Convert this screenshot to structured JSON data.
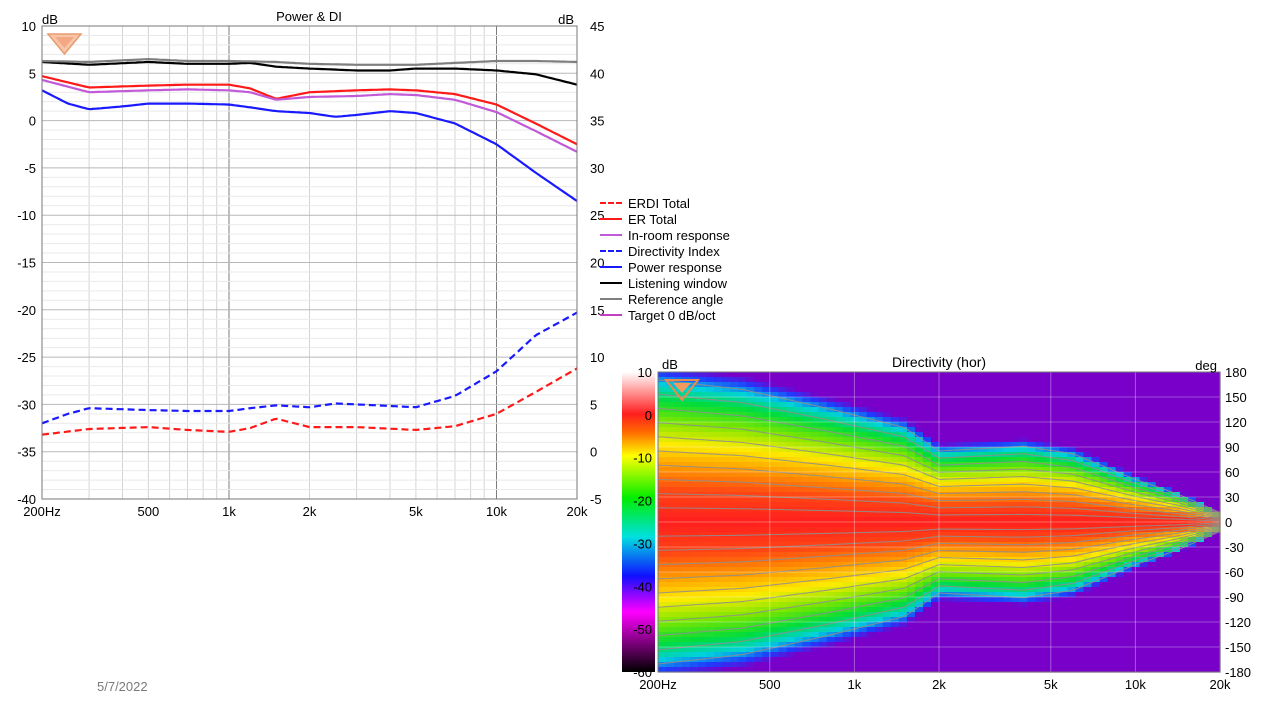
{
  "footer": {
    "date": "5/7/2022"
  },
  "colors": {
    "erdi_total": "#ff1a1a",
    "er_total": "#ff1a1a",
    "in_room": "#c05ad8",
    "directivity_index": "#1a1aff",
    "power": "#1a1aff",
    "listening_window": "#000000",
    "reference_angle": "#7f7f7f",
    "target": "#c040c0",
    "grid": "#d4d4d4",
    "grid_major": "#7c7c7c"
  },
  "legend": [
    {
      "label": "ERDI Total",
      "color": "#ff1a1a",
      "dashed": true
    },
    {
      "label": "ER Total",
      "color": "#ff1a1a",
      "dashed": false
    },
    {
      "label": "In-room response",
      "color": "#c05ad8",
      "dashed": false
    },
    {
      "label": "Directivity Index",
      "color": "#1a1aff",
      "dashed": true
    },
    {
      "label": "Power response",
      "color": "#1a1aff",
      "dashed": false
    },
    {
      "label": "Listening window",
      "color": "#000000",
      "dashed": false
    },
    {
      "label": "Reference angle",
      "color": "#7f7f7f",
      "dashed": false
    },
    {
      "label": "Target 0 dB/oct",
      "color": "#c040c0",
      "dashed": false
    }
  ],
  "chart_data": [
    {
      "type": "line",
      "title": "Power & DI",
      "ylabel": "dB",
      "y2label": "dB",
      "xscale": "log",
      "xlim": [
        200,
        20000
      ],
      "ylim": [
        -40,
        10
      ],
      "y2lim": [
        -5,
        45
      ],
      "grid": true,
      "legend_position": "right",
      "x_ticks": [
        "200Hz",
        "500",
        "1k",
        "2k",
        "5k",
        "10k",
        "20k"
      ],
      "x_tick_values": [
        200,
        500,
        1000,
        2000,
        5000,
        10000,
        20000
      ],
      "y_ticks": [
        "10",
        "5",
        "0",
        "-5",
        "-10",
        "-15",
        "-20",
        "-25",
        "-30",
        "-35",
        "-40"
      ],
      "y2_ticks": [
        "45",
        "40",
        "35",
        "30",
        "25",
        "20",
        "15",
        "10",
        "5",
        "0",
        "-5"
      ],
      "series": [
        {
          "name": "Listening window",
          "axis": "left",
          "color": "#000000",
          "dashed": false,
          "x": [
            200,
            300,
            500,
            700,
            1000,
            1200,
            1500,
            2000,
            3000,
            4000,
            5000,
            7000,
            10000,
            14000,
            20000
          ],
          "y": [
            6.2,
            5.9,
            6.2,
            6.0,
            6.0,
            6.1,
            5.7,
            5.5,
            5.3,
            5.3,
            5.5,
            5.5,
            5.3,
            4.9,
            3.8
          ]
        },
        {
          "name": "Reference angle",
          "axis": "left",
          "color": "#7f7f7f",
          "dashed": false,
          "x": [
            200,
            300,
            500,
            700,
            1000,
            1500,
            2000,
            3000,
            5000,
            7000,
            10000,
            14000,
            20000
          ],
          "y": [
            6.3,
            6.2,
            6.5,
            6.3,
            6.3,
            6.2,
            6.0,
            5.9,
            5.9,
            6.1,
            6.3,
            6.3,
            6.2
          ]
        },
        {
          "name": "ER Total",
          "axis": "left",
          "color": "#ff1a1a",
          "dashed": false,
          "x": [
            200,
            300,
            500,
            700,
            1000,
            1200,
            1500,
            2000,
            3000,
            4000,
            5000,
            7000,
            10000,
            14000,
            20000
          ],
          "y": [
            4.7,
            3.5,
            3.7,
            3.8,
            3.8,
            3.4,
            2.3,
            3.0,
            3.2,
            3.3,
            3.2,
            2.8,
            1.7,
            -0.3,
            -2.5
          ]
        },
        {
          "name": "In-room response",
          "axis": "left",
          "color": "#c05ad8",
          "dashed": false,
          "x": [
            200,
            300,
            500,
            700,
            1000,
            1200,
            1500,
            2000,
            3000,
            4000,
            5000,
            7000,
            10000,
            14000,
            20000
          ],
          "y": [
            4.3,
            3.0,
            3.2,
            3.3,
            3.2,
            3.0,
            2.2,
            2.5,
            2.6,
            2.8,
            2.7,
            2.2,
            0.9,
            -1.1,
            -3.3
          ]
        },
        {
          "name": "Power response",
          "axis": "left",
          "color": "#1a1aff",
          "dashed": false,
          "x": [
            200,
            250,
            300,
            400,
            500,
            700,
            1000,
            1200,
            1500,
            2000,
            2500,
            3000,
            4000,
            5000,
            7000,
            10000,
            14000,
            20000
          ],
          "y": [
            3.2,
            1.8,
            1.2,
            1.5,
            1.8,
            1.8,
            1.7,
            1.4,
            1.0,
            0.8,
            0.4,
            0.6,
            1.0,
            0.8,
            -0.3,
            -2.5,
            -5.5,
            -8.5
          ]
        },
        {
          "name": "ERDI Total",
          "axis": "right",
          "color": "#ff1a1a",
          "dashed": true,
          "x": [
            200,
            300,
            500,
            700,
            1000,
            1200,
            1500,
            2000,
            3000,
            5000,
            7000,
            10000,
            14000,
            20000
          ],
          "y": [
            1.8,
            2.4,
            2.6,
            2.3,
            2.1,
            2.5,
            3.5,
            2.6,
            2.6,
            2.3,
            2.7,
            4.0,
            6.3,
            8.8
          ]
        },
        {
          "name": "Directivity Index",
          "axis": "right",
          "color": "#1a1aff",
          "dashed": true,
          "x": [
            200,
            250,
            300,
            500,
            700,
            1000,
            1200,
            1500,
            2000,
            2500,
            3000,
            5000,
            7000,
            10000,
            14000,
            20000
          ],
          "y": [
            3.0,
            4.0,
            4.6,
            4.4,
            4.3,
            4.3,
            4.6,
            4.9,
            4.7,
            5.1,
            5.0,
            4.7,
            5.9,
            8.5,
            12.3,
            14.7
          ]
        }
      ]
    },
    {
      "type": "heatmap",
      "title": "Directivity (hor)",
      "ylabel": "deg",
      "colorbar_label": "dB",
      "xscale": "log",
      "xlim": [
        200,
        20000
      ],
      "ylim": [
        -180,
        180
      ],
      "x_ticks": [
        "200Hz",
        "500",
        "1k",
        "2k",
        "5k",
        "10k",
        "20k"
      ],
      "x_tick_values": [
        200,
        500,
        1000,
        2000,
        5000,
        10000,
        20000
      ],
      "y_ticks": [
        "180",
        "150",
        "120",
        "90",
        "60",
        "30",
        "0",
        "-30",
        "-60",
        "-90",
        "-120",
        "-150",
        "-180"
      ],
      "y_tick_values": [
        180,
        150,
        120,
        90,
        60,
        30,
        0,
        -30,
        -60,
        -90,
        -120,
        -150,
        -180
      ],
      "colorbar_ticks": [
        "10",
        "0",
        "-10",
        "-20",
        "-30",
        "-40",
        "-50",
        "-60"
      ],
      "colorbar_range": [
        -60,
        10
      ],
      "beamwidth_angle_deg": {
        "freq": [
          200,
          400,
          800,
          1500,
          2000,
          4000,
          6000,
          10000,
          14000,
          20000
        ],
        "deg": [
          150,
          140,
          120,
          100,
          75,
          80,
          72,
          45,
          30,
          10
        ]
      },
      "contour_level_count": 10
    }
  ]
}
